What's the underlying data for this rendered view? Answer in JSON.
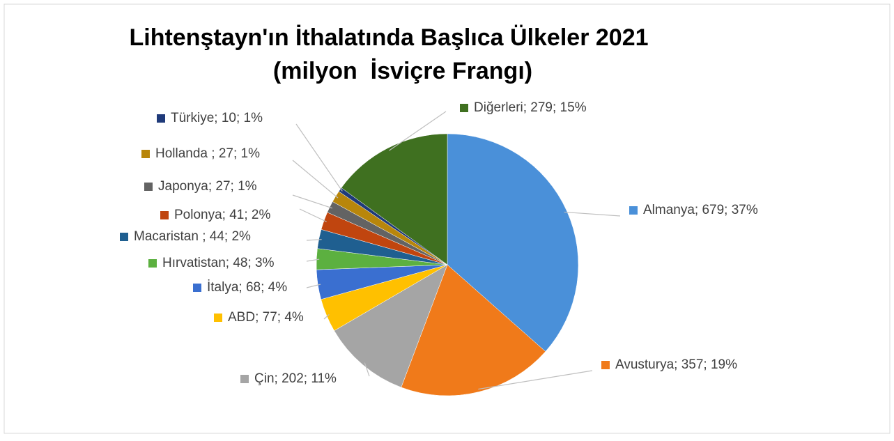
{
  "chart_data": {
    "type": "pie",
    "title": [
      "Lihtenştayn'ın İthalatında Başlıca Ülkeler 2021",
      "(milyon  İsviçre Frangı)"
    ],
    "values": [
      679,
      357,
      202,
      77,
      68,
      48,
      44,
      41,
      27,
      27,
      10,
      279
    ],
    "value_labels": [
      "Almanya; 679; 37%",
      "Avusturya; 357; 19%",
      "Çin; 202; 11%",
      "ABD; 77; 4%",
      "İtalya; 68; 4%",
      "Hırvatistan; 48; 3%",
      "Macaristan ; 44; 2%",
      "Polonya; 41; 2%",
      "Japonya; 27; 1%",
      "Hollanda ; 27; 1%",
      "Türkiye; 10; 1%",
      "Diğerleri; 279; 15%"
    ],
    "colors": [
      "#4a90d9",
      "#f07a1a",
      "#a5a5a5",
      "#ffc000",
      "#3a6fd0",
      "#5cb040",
      "#1f5f90",
      "#c0450f",
      "#636363",
      "#b8860b",
      "#1f3a7a",
      "#3f7020"
    ]
  }
}
